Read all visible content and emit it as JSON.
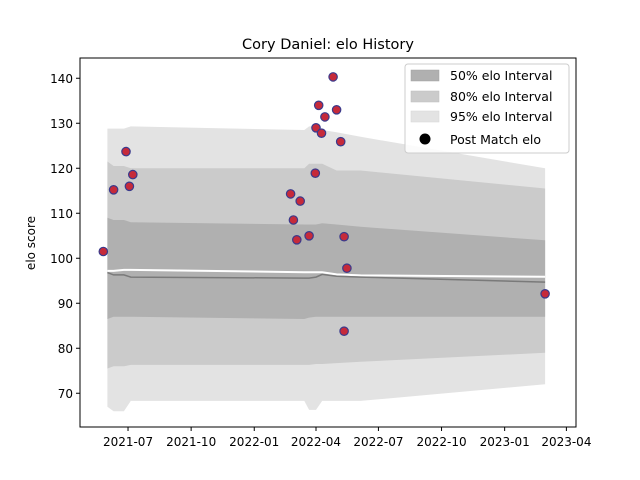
{
  "chart_data": {
    "type": "scatter",
    "title": "Cory Daniel: elo History",
    "xlabel": "",
    "ylabel": "elo score",
    "x_axis": {
      "type": "date",
      "range": [
        "2021-04-22",
        "2023-04-15"
      ],
      "ticks": [
        {
          "date": "2021-07-01",
          "label": "2021-07"
        },
        {
          "date": "2021-10-01",
          "label": "2021-10"
        },
        {
          "date": "2022-01-01",
          "label": "2022-01"
        },
        {
          "date": "2022-04-01",
          "label": "2022-04"
        },
        {
          "date": "2022-07-01",
          "label": "2022-07"
        },
        {
          "date": "2022-10-01",
          "label": "2022-10"
        },
        {
          "date": "2023-01-01",
          "label": "2023-01"
        },
        {
          "date": "2023-04-01",
          "label": "2023-04"
        }
      ]
    },
    "y_axis": {
      "range": [
        62.5,
        144.5
      ],
      "ticks": [
        70,
        80,
        90,
        100,
        110,
        120,
        130,
        140
      ]
    },
    "grid": false,
    "legend_position": "top-right",
    "legend": [
      {
        "label": "50% elo Interval",
        "color": "#b0b0b0",
        "kind": "patch"
      },
      {
        "label": "80% elo Interval",
        "color": "#cbcbcb",
        "kind": "patch"
      },
      {
        "label": "95% elo Interval",
        "color": "#e3e3e3",
        "kind": "patch"
      },
      {
        "label": "Post Match elo",
        "color": "#000000",
        "kind": "marker"
      }
    ],
    "intervals": {
      "x": [
        "2021-06-01",
        "2021-06-10",
        "2021-06-25",
        "2021-07-05",
        "2022-03-15",
        "2022-03-22",
        "2022-04-01",
        "2022-04-10",
        "2022-05-01",
        "2022-06-05",
        "2023-03-01"
      ],
      "mean": [
        96.8,
        96.3,
        96.3,
        95.8,
        95.6,
        95.6,
        95.8,
        96.4,
        96.0,
        95.8,
        94.7
      ],
      "band50": {
        "lower": [
          86.5,
          87.0,
          87.0,
          87.0,
          86.5,
          86.8,
          87.0,
          87.0,
          87.0,
          87.0,
          87.0
        ],
        "upper": [
          109.0,
          108.5,
          108.5,
          108.0,
          107.5,
          107.5,
          107.5,
          107.8,
          107.5,
          107.0,
          104.0
        ]
      },
      "band80": {
        "lower": [
          75.5,
          76.0,
          76.0,
          76.3,
          76.3,
          76.3,
          76.5,
          76.5,
          76.7,
          77.0,
          79.0
        ],
        "upper": [
          121.5,
          120.5,
          120.5,
          120.0,
          120.0,
          121.0,
          121.0,
          121.0,
          119.5,
          119.5,
          115.5
        ]
      },
      "band95": {
        "lower": [
          67.0,
          66.0,
          66.0,
          68.3,
          68.3,
          66.3,
          66.3,
          68.3,
          68.3,
          68.3,
          72.0
        ],
        "upper": [
          128.8,
          128.8,
          128.8,
          129.3,
          128.5,
          129.3,
          129.3,
          128.5,
          128.0,
          127.0,
          120.0
        ]
      },
      "post_line": [
        97.2,
        97.2,
        97.4,
        97.4,
        96.9,
        96.9,
        96.9,
        96.9,
        96.4,
        96.2,
        95.9
      ]
    },
    "series": [
      {
        "name": "Post Match elo",
        "marker_color": "#c62a3a",
        "marker_edge": "#3a3a8c",
        "points": [
          {
            "x": "2021-05-26",
            "y": 101.5
          },
          {
            "x": "2021-06-10",
            "y": 115.2
          },
          {
            "x": "2021-06-28",
            "y": 123.7
          },
          {
            "x": "2021-07-03",
            "y": 116.0
          },
          {
            "x": "2021-07-08",
            "y": 118.6
          },
          {
            "x": "2022-02-23",
            "y": 114.3
          },
          {
            "x": "2022-02-27",
            "y": 108.5
          },
          {
            "x": "2022-03-04",
            "y": 104.1
          },
          {
            "x": "2022-03-09",
            "y": 112.7
          },
          {
            "x": "2022-03-22",
            "y": 105.0
          },
          {
            "x": "2022-03-31",
            "y": 118.9
          },
          {
            "x": "2022-04-01",
            "y": 129.0
          },
          {
            "x": "2022-04-05",
            "y": 134.0
          },
          {
            "x": "2022-04-09",
            "y": 127.8
          },
          {
            "x": "2022-04-14",
            "y": 131.4
          },
          {
            "x": "2022-04-26",
            "y": 140.3
          },
          {
            "x": "2022-05-01",
            "y": 133.0
          },
          {
            "x": "2022-05-07",
            "y": 125.9
          },
          {
            "x": "2022-05-12",
            "y": 104.8
          },
          {
            "x": "2022-05-12",
            "y": 83.8
          },
          {
            "x": "2022-05-16",
            "y": 97.8
          },
          {
            "x": "2023-03-01",
            "y": 92.1
          }
        ]
      }
    ]
  }
}
